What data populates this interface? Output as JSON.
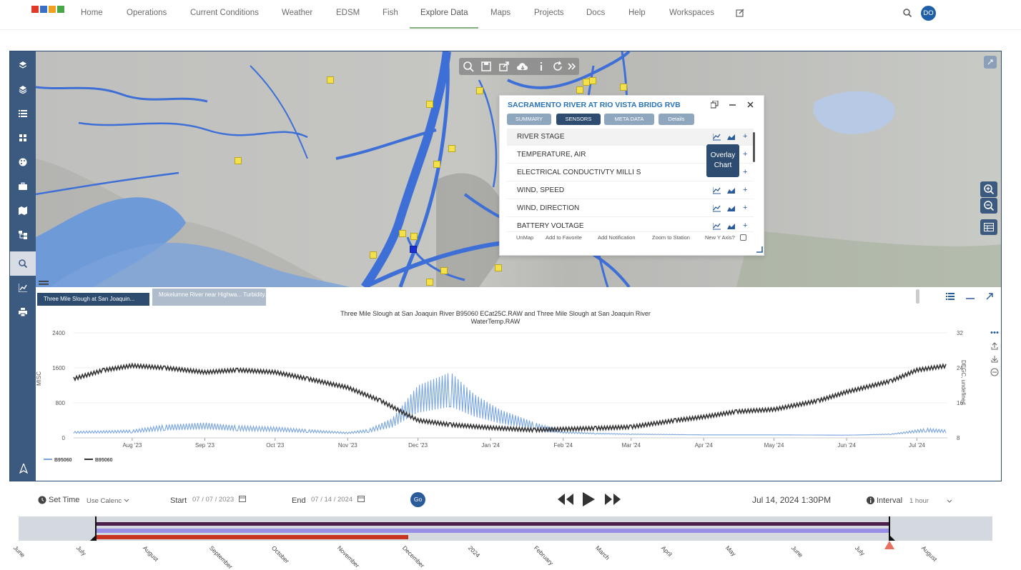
{
  "nav": {
    "items": [
      "Home",
      "Operations",
      "Current Conditions",
      "Weather",
      "EDSM",
      "Fish",
      "Explore Data",
      "Maps",
      "Projects",
      "Docs",
      "Help",
      "Workspaces"
    ],
    "active": "Explore Data",
    "avatar": "DO"
  },
  "popup": {
    "title": "SACRAMENTO RIVER AT RIO VISTA BRIDG RVB",
    "tabs": [
      "SUMMARY",
      "SENSORS",
      "META DATA",
      "Details"
    ],
    "active_tab": "SENSORS",
    "sensors": [
      "RIVER STAGE",
      "TEMPERATURE, AIR",
      "ELECTRICAL CONDUCTIVTY MILLI S",
      "WIND, SPEED",
      "WIND, DIRECTION",
      "BATTERY VOLTAGE"
    ],
    "footer": [
      "UnMap",
      "Add to Favorite",
      "Add Notification",
      "Zoom to Station",
      "New Y Axis?"
    ],
    "tooltip": "Overlay Chart"
  },
  "chart_tabs": [
    "Three Mile Slough at San Joaquin...",
    "Mokelumne River near Highwa... Turbidity.RAW"
  ],
  "chart_data": {
    "type": "line",
    "title": "Three Mile Slough at San Joaquin River B95060 ECat25C.RAW and Three Mile Slough at San Joaquin River WaterTemp.RAW",
    "ylabel": "MISC",
    "y2label": "DEGC, undefined",
    "ylim": [
      0,
      2400
    ],
    "y2lim": [
      8,
      32
    ],
    "yticks": [
      "2400",
      "1600",
      "800",
      "0"
    ],
    "y2ticks": [
      "32",
      "24",
      "16",
      "8"
    ],
    "xticks": [
      "Aug '23",
      "Sep '23",
      "Oct '23",
      "Nov '23",
      "Dec '23",
      "Jan '24",
      "Feb '24",
      "Mar '24",
      "Apr '24",
      "May '24",
      "Jun '24",
      "Jul '24"
    ],
    "legend": [
      "B95060",
      "B95060"
    ],
    "legend_position": "bottom-left",
    "series": [
      {
        "name": "B95060",
        "axis": "left",
        "color": "#7aa6e0",
        "x": [
          "2023-07-07",
          "2023-08-01",
          "2023-08-15",
          "2023-09-01",
          "2023-09-15",
          "2023-10-01",
          "2023-10-15",
          "2023-11-01",
          "2023-11-10",
          "2023-11-20",
          "2023-12-01",
          "2023-12-15",
          "2023-12-25",
          "2024-01-05",
          "2024-01-20",
          "2024-02-01",
          "2024-02-15",
          "2024-03-01",
          "2024-04-01",
          "2024-05-01",
          "2024-06-01",
          "2024-06-20",
          "2024-07-05",
          "2024-07-14"
        ],
        "values": [
          150,
          180,
          300,
          350,
          280,
          250,
          190,
          130,
          200,
          450,
          1200,
          1500,
          1000,
          650,
          350,
          150,
          110,
          90,
          70,
          70,
          60,
          90,
          220,
          180
        ]
      },
      {
        "name": "B95060",
        "axis": "right",
        "color": "#333333",
        "x": [
          "2023-07-07",
          "2023-07-20",
          "2023-08-01",
          "2023-08-15",
          "2023-09-01",
          "2023-09-15",
          "2023-10-01",
          "2023-10-15",
          "2023-11-01",
          "2023-11-15",
          "2023-12-01",
          "2023-12-15",
          "2024-01-01",
          "2024-01-20",
          "2024-02-01",
          "2024-02-15",
          "2024-03-01",
          "2024-03-20",
          "2024-04-01",
          "2024-04-15",
          "2024-05-01",
          "2024-05-20",
          "2024-06-01",
          "2024-06-20",
          "2024-07-01",
          "2024-07-14"
        ],
        "values": [
          21.5,
          23.5,
          24.5,
          24,
          23,
          23.5,
          23,
          21.5,
          19.5,
          16.5,
          12,
          11,
          10.3,
          9.8,
          10,
          10.2,
          10.5,
          12,
          12.8,
          14,
          14.5,
          16.5,
          18.5,
          21,
          23.5,
          24.5
        ]
      }
    ]
  },
  "controls": {
    "set_time": "Set Time",
    "calendar": "Use Calenc",
    "start_label": "Start",
    "start": "07 / 07 / 2023",
    "end_label": "End",
    "end": "07 / 14 / 2024",
    "go": "Go",
    "current_time": "Jul 14, 2024 1:30PM",
    "interval_label": "Interval",
    "interval": "1 hour"
  },
  "timeline_months": [
    "June",
    "July",
    "August",
    "September",
    "October",
    "November",
    "December",
    "2024",
    "February",
    "March",
    "April",
    "May",
    "June",
    "July",
    "August"
  ]
}
